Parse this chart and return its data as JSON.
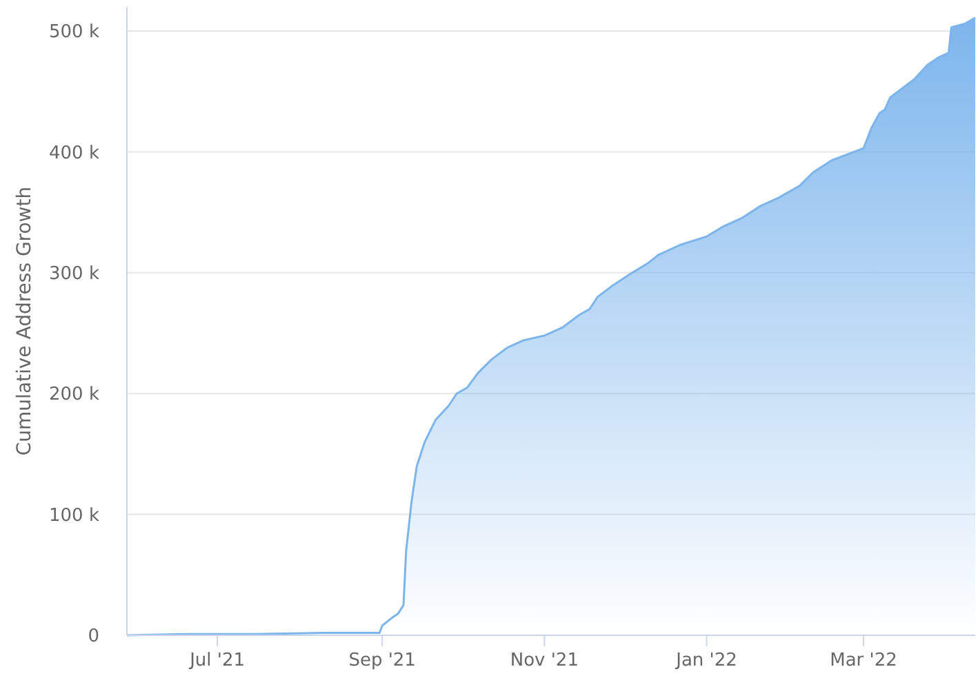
{
  "chart_data": {
    "type": "area",
    "ylabel": "Cumulative Address Growth",
    "grid": "y",
    "color": "#7cb5ec",
    "x": [
      "2021-05-28",
      "2021-06-20",
      "2021-07-15",
      "2021-08-10",
      "2021-08-31",
      "2021-09-01",
      "2021-09-05",
      "2021-09-07",
      "2021-09-09",
      "2021-09-10",
      "2021-09-12",
      "2021-09-14",
      "2021-09-17",
      "2021-09-21",
      "2021-09-26",
      "2021-09-29",
      "2021-10-03",
      "2021-10-07",
      "2021-10-12",
      "2021-10-18",
      "2021-10-24",
      "2021-11-01",
      "2021-11-08",
      "2021-11-14",
      "2021-11-18",
      "2021-11-21",
      "2021-11-27",
      "2021-12-04",
      "2021-12-10",
      "2021-12-14",
      "2021-12-22",
      "2022-01-01",
      "2022-01-07",
      "2022-01-14",
      "2022-01-21",
      "2022-01-28",
      "2022-02-05",
      "2022-02-10",
      "2022-02-17",
      "2022-03-01",
      "2022-03-04",
      "2022-03-07",
      "2022-03-09",
      "2022-03-11",
      "2022-03-14",
      "2022-03-20",
      "2022-03-25",
      "2022-03-29",
      "2022-04-02",
      "2022-04-03",
      "2022-04-08",
      "2022-04-12"
    ],
    "values": [
      0,
      1000,
      1000,
      2000,
      2000,
      8000,
      15000,
      18000,
      25000,
      70000,
      110000,
      140000,
      160000,
      178000,
      190000,
      200000,
      205000,
      217000,
      228000,
      238000,
      244000,
      248000,
      255000,
      265000,
      270000,
      280000,
      290000,
      300000,
      308000,
      315000,
      323000,
      330000,
      338000,
      345000,
      355000,
      362000,
      372000,
      383000,
      393000,
      403000,
      420000,
      432000,
      435000,
      445000,
      450000,
      460000,
      472000,
      478000,
      482000,
      503000,
      506000,
      511000
    ],
    "xlim": [
      "2021-05-28",
      "2022-04-12"
    ],
    "xticks": [
      {
        "value": "2021-07-01",
        "label": "Jul '21"
      },
      {
        "value": "2021-09-01",
        "label": "Sep '21"
      },
      {
        "value": "2021-11-01",
        "label": "Nov '21"
      },
      {
        "value": "2022-01-01",
        "label": "Jan '22"
      },
      {
        "value": "2022-03-01",
        "label": "Mar '22"
      }
    ],
    "ylim": [
      0,
      520000
    ],
    "yticks": [
      {
        "value": 0,
        "label": "0"
      },
      {
        "value": 100000,
        "label": "100 k"
      },
      {
        "value": 200000,
        "label": "200 k"
      },
      {
        "value": 300000,
        "label": "300 k"
      },
      {
        "value": 400000,
        "label": "400 k"
      },
      {
        "value": 500000,
        "label": "500 k"
      }
    ]
  }
}
